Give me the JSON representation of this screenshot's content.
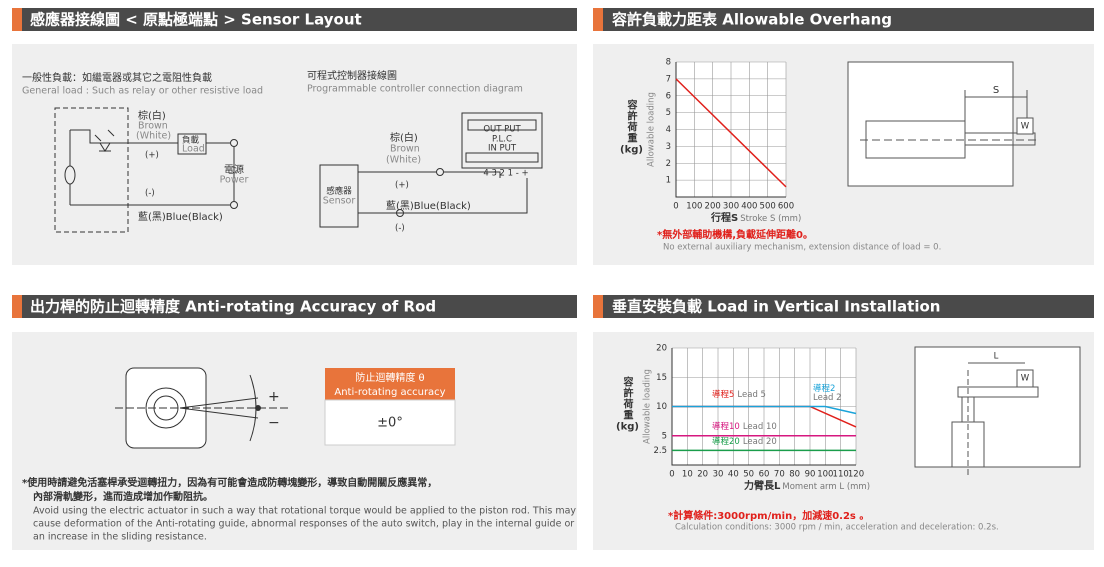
{
  "sensor_layout": {
    "title": "感應器接線圖 < 原點極端點 > Sensor Layout",
    "general_load": {
      "title": "一般性負載：如繼電器或其它之電阻性負載",
      "subtitle": "General load : Such as relay or other resistive load",
      "brown": "棕(白)",
      "brown_en": "Brown",
      "white_en": "(White)",
      "plus": "(+)",
      "load": "負載",
      "load_en": "Load",
      "power": "電源",
      "power_en": "Power",
      "minus": "(-)",
      "blue": "藍(黑)Blue(Black)"
    },
    "plc": {
      "title": "可程式控制器接線圖",
      "subtitle": "Programmable controller connection diagram",
      "brown": "棕(白)",
      "brown_en": "Brown",
      "white_en": "(White)",
      "plus": "(+)",
      "sensor": "感應器",
      "sensor_en": "Sensor",
      "blue": "藍(黑)Blue(Black)",
      "minus": "(-)",
      "output": "OUT PUT",
      "plc": "P.L.C",
      "input": "IN PUT",
      "terminals": "4 3 2 1 - +"
    }
  },
  "allowable_overhang": {
    "title": "容許負載力距表 Allowable Overhang",
    "chart": {
      "type": "line",
      "y_label": "容許荷重",
      "y_unit": "(kg)",
      "y_label_en": "Allowable loading",
      "x_label": "行程S",
      "x_label_en": "Stroke S (mm)",
      "xlim": [
        0,
        600
      ],
      "ylim": [
        0,
        8
      ],
      "xticks": [
        0,
        100,
        200,
        300,
        400,
        500,
        600
      ],
      "yticks": [
        1,
        2,
        3,
        4,
        5,
        6,
        7,
        8
      ],
      "grid": true,
      "series": [
        {
          "color": "#e0201b",
          "x": [
            0,
            600
          ],
          "values": [
            7,
            0.6
          ]
        }
      ]
    },
    "note": "*無外部輔助機構,負載延伸距離0。",
    "note_en": "No external auxiliary mechanism, extension distance of load = 0.",
    "diagram": {
      "s": "S",
      "w": "W"
    }
  },
  "anti_rotating": {
    "title": "出力桿的防止迴轉精度 Anti-rotating Accuracy of Rod",
    "table": {
      "header": "防止迴轉精度 θ",
      "header_en": "Anti-rotating accuracy",
      "value": "±0°"
    },
    "diagram": {
      "plus": "+",
      "minus": "−"
    },
    "note": [
      "*使用時請避免活塞桿承受迴轉扭力，因為有可能會造成防轉塊變形，導致自動開關反應異常，",
      "內部滑軌變形，進而造成增加作動阻抗。"
    ],
    "note_en": [
      "Avoid using the electric actuator in such a way that rotational torque would be applied to the piston rod. This may",
      "cause deformation of the Anti-rotating guide, abnormal responses of the auto switch, play in the internal guide or",
      "an increase in the sliding resistance."
    ]
  },
  "vertical_installation": {
    "title": "垂直安裝負載 Load in Vertical Installation",
    "chart": {
      "type": "line",
      "y_label": "容許荷重",
      "y_unit": "(kg)",
      "y_label_en": "Allowable loading",
      "x_label": "力臂長L",
      "x_label_en": "Moment arm L (mm)",
      "xlim": [
        0,
        120
      ],
      "ylim": [
        0,
        20
      ],
      "xticks": [
        0,
        10,
        20,
        30,
        40,
        50,
        60,
        70,
        80,
        90,
        100,
        110,
        120
      ],
      "yticks": [
        2.5,
        5,
        10,
        15,
        20
      ],
      "grid": true,
      "series": [
        {
          "name": "導程5",
          "name_en": "Lead 5",
          "color": "#e0201b",
          "x": [
            0,
            90,
            120
          ],
          "values": [
            10,
            10,
            6.5
          ]
        },
        {
          "name": "導程2",
          "name_en": "Lead 2",
          "color": "#1aa3d9",
          "x": [
            0,
            100,
            120
          ],
          "values": [
            10,
            10,
            8.8
          ]
        },
        {
          "name": "導程10",
          "name_en": "Lead 10",
          "color": "#d6177f",
          "x": [
            0,
            120
          ],
          "values": [
            5,
            5
          ]
        },
        {
          "name": "導程20",
          "name_en": "Lead 20",
          "color": "#1a9d4b",
          "x": [
            0,
            120
          ],
          "values": [
            2.5,
            2.5
          ]
        }
      ]
    },
    "note": "*計算條件:3000rpm/min，加減速0.2s 。",
    "note_en": "Calculation conditions: 3000 rpm / min, acceleration and deceleration: 0.2s.",
    "diagram": {
      "l": "L",
      "w": "W"
    }
  }
}
